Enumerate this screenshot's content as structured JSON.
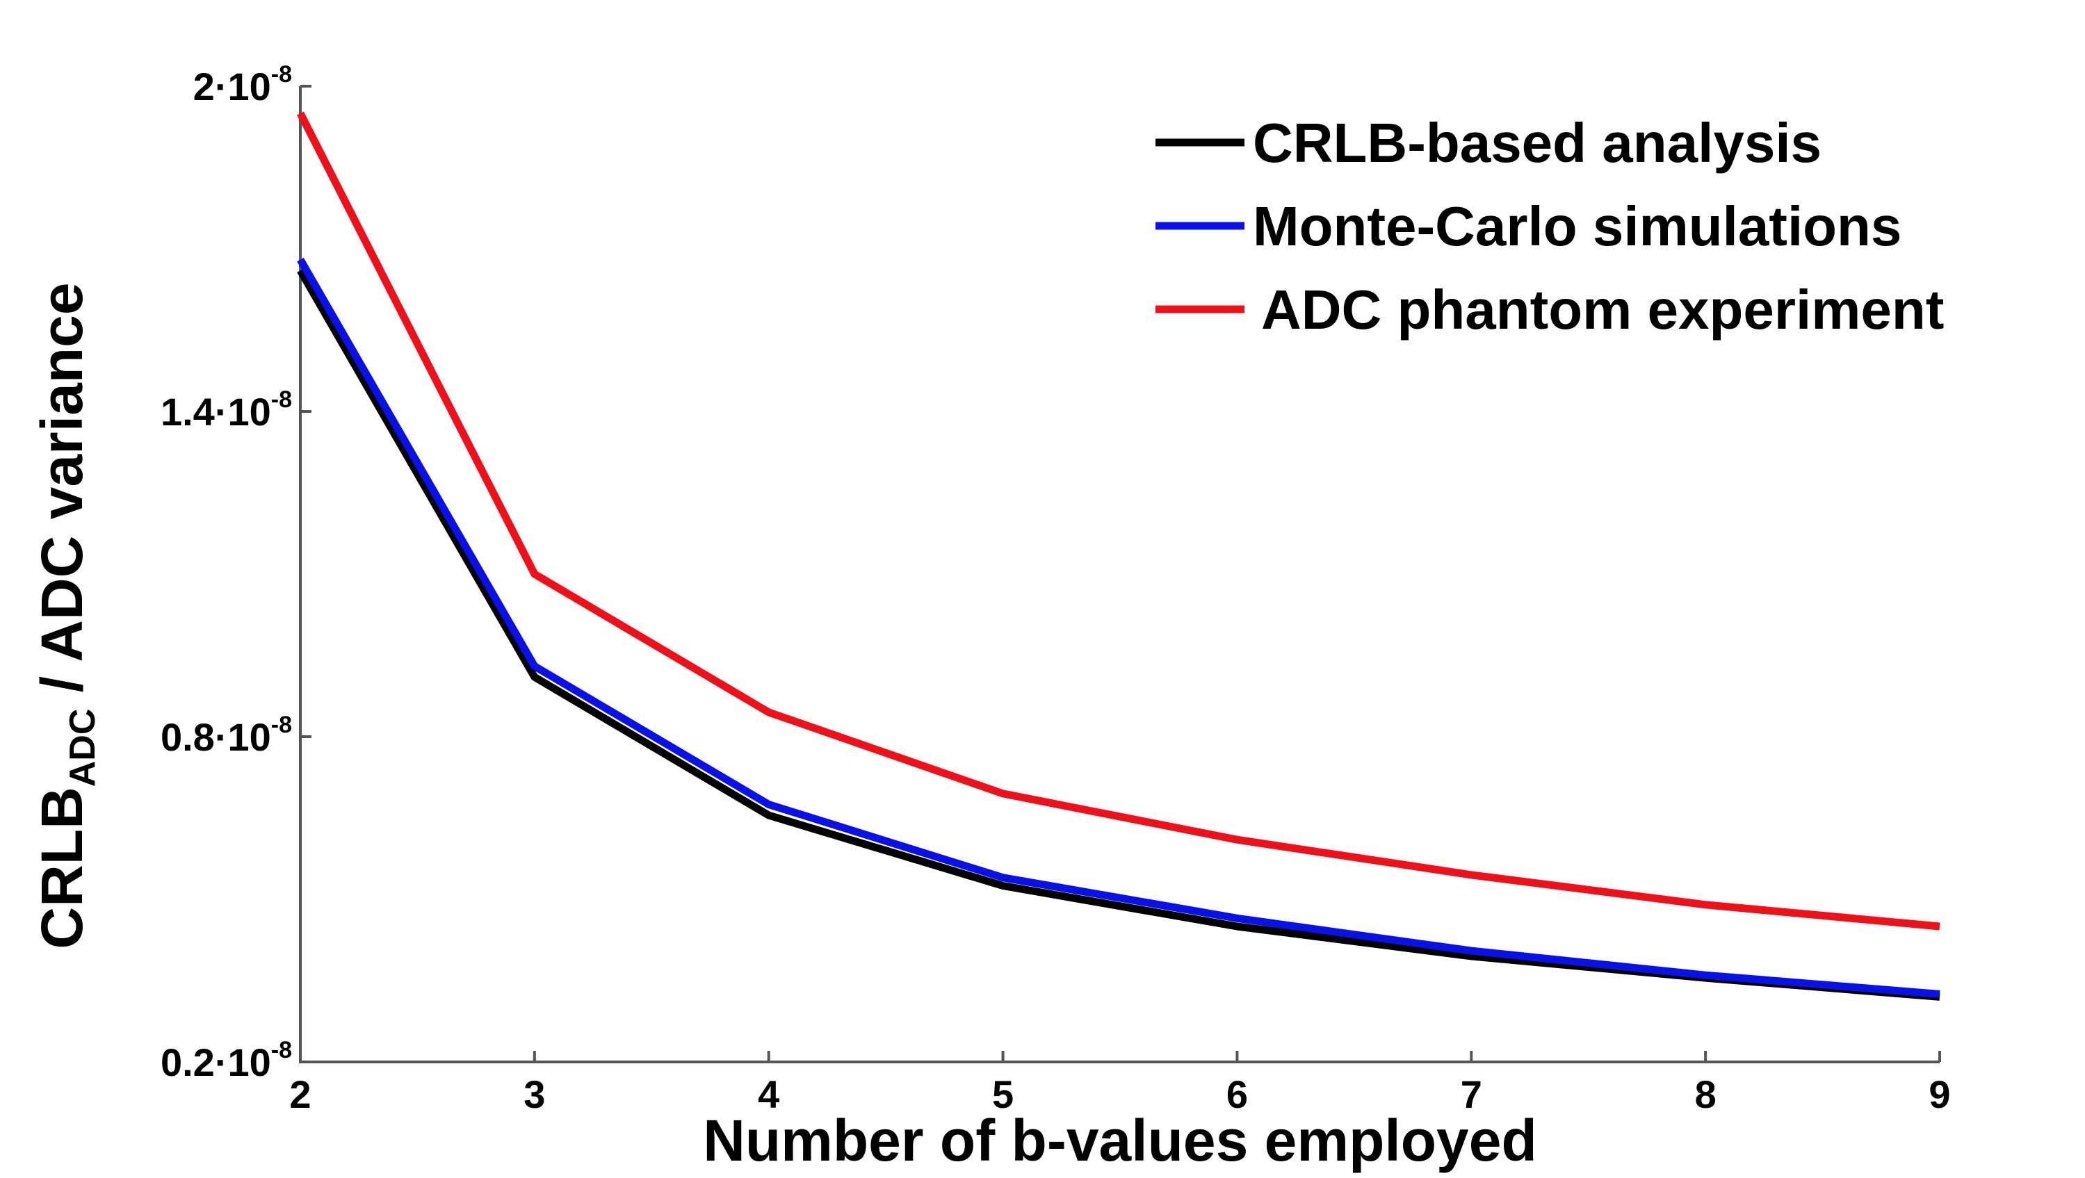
{
  "chart_data": {
    "type": "line",
    "x": [
      2,
      3,
      4,
      5,
      6,
      7,
      8,
      9
    ],
    "xlim": [
      2,
      9
    ],
    "ylim": [
      0.2,
      2.0
    ],
    "xlabel": "Number of b-values employed",
    "ylabel": {
      "main": "CRLB",
      "sub": "ADC",
      "rest": " / ADC variance"
    },
    "x_ticks": [
      {
        "value": 2,
        "label": "2"
      },
      {
        "value": 3,
        "label": "3"
      },
      {
        "value": 4,
        "label": "4"
      },
      {
        "value": 5,
        "label": "5"
      },
      {
        "value": 6,
        "label": "6"
      },
      {
        "value": 7,
        "label": "7"
      },
      {
        "value": 8,
        "label": "8"
      },
      {
        "value": 9,
        "label": "9"
      }
    ],
    "y_ticks": [
      {
        "value": 0.2,
        "mantissa": "0.2·10",
        "exponent": "-8"
      },
      {
        "value": 0.8,
        "mantissa": "0.8·10",
        "exponent": "-8"
      },
      {
        "value": 1.4,
        "mantissa": "1.4·10",
        "exponent": "-8"
      },
      {
        "value": 2.0,
        "mantissa": "2·10",
        "exponent": "-8"
      }
    ],
    "y_unit_multiplier": "1e-8",
    "grid": false,
    "legend_position": "top-right",
    "series": [
      {
        "name": "CRLB-based analysis",
        "color": "#000000",
        "values": [
          1.66,
          0.91,
          0.655,
          0.525,
          0.45,
          0.395,
          0.355,
          0.32
        ]
      },
      {
        "name": "Monte-Carlo simulations",
        "color": "#0a10e8",
        "values": [
          1.68,
          0.93,
          0.675,
          0.54,
          0.465,
          0.405,
          0.36,
          0.325
        ]
      },
      {
        "name": "ADC phantom experiment",
        "color": "#f0101a",
        "values": [
          1.95,
          1.1,
          0.845,
          0.695,
          0.61,
          0.545,
          0.49,
          0.45
        ]
      }
    ]
  }
}
